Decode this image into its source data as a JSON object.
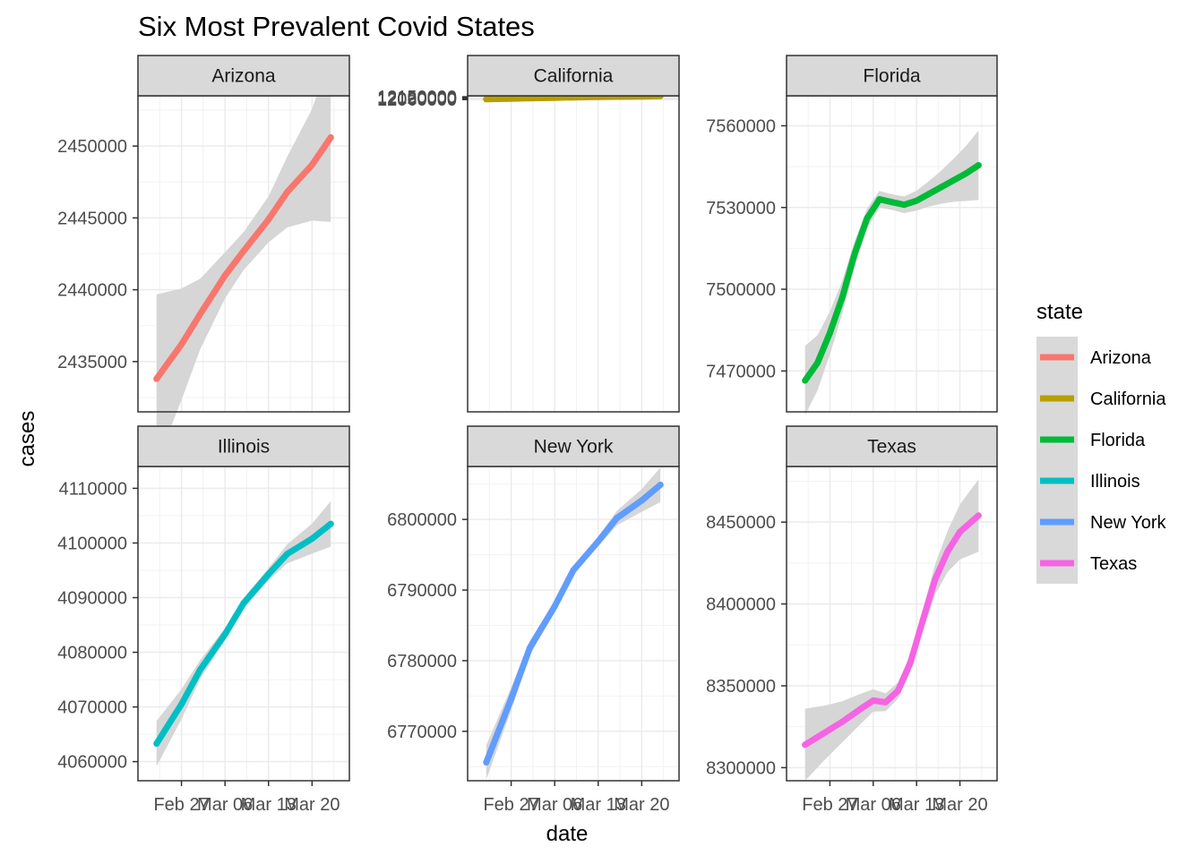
{
  "chart_data": {
    "type": "line",
    "title": "Six Most Prevalent Covid States",
    "xlabel": "date",
    "ylabel": "cases",
    "x_ticks": [
      "Feb 27",
      "Mar 06",
      "Mar 13",
      "Mar 20"
    ],
    "legend": {
      "title": "state",
      "position": "right"
    },
    "grid": true,
    "smoothing_band": true,
    "panels": [
      {
        "name": "Arizona",
        "color": "#F8766D",
        "ylim": [
          2431500,
          2453500
        ],
        "y_ticks": [
          2435000,
          2440000,
          2445000,
          2450000
        ],
        "tick_labels": [
          "2435000",
          "2440000",
          "2445000",
          "2450000"
        ],
        "x": [
          "2022-02-23",
          "2022-02-27",
          "2022-03-02",
          "2022-03-06",
          "2022-03-09",
          "2022-03-13",
          "2022-03-16",
          "2022-03-20",
          "2022-03-23"
        ],
        "values": [
          2433800,
          2436200,
          2438300,
          2441000,
          2442700,
          2444900,
          2446800,
          2448700,
          2450600
        ]
      },
      {
        "name": "California",
        "color": "#B79F00",
        "ylim": [
          2059000,
          12181000
        ],
        "y_ticks": [
          12060000,
          12090000,
          12120000,
          12150000
        ],
        "tick_labels": [
          "12060000",
          "12090000",
          "12120000",
          "12150000"
        ],
        "x": [
          "2022-02-23",
          "2022-02-27",
          "2022-03-02",
          "2022-03-06",
          "2022-03-09",
          "2022-03-13",
          "2022-03-16",
          "2022-03-20",
          "2022-03-23"
        ],
        "values": [
          12073000,
          12089000,
          12104000,
          12118000,
          12131000,
          12143000,
          12153000,
          12162000,
          12171000
        ]
      },
      {
        "name": "Florida",
        "color": "#00BA38",
        "ylim": [
          7455000,
          7571000
        ],
        "y_ticks": [
          7470000,
          7500000,
          7530000,
          7560000
        ],
        "tick_labels": [
          "7470000",
          "7500000",
          "7530000",
          "7560000"
        ],
        "x": [
          "2022-02-23",
          "2022-02-25",
          "2022-02-27",
          "2022-03-01",
          "2022-03-03",
          "2022-03-05",
          "2022-03-07",
          "2022-03-09",
          "2022-03-11",
          "2022-03-13",
          "2022-03-15",
          "2022-03-17",
          "2022-03-19",
          "2022-03-21",
          "2022-03-23"
        ],
        "values": [
          7466500,
          7473000,
          7484000,
          7497000,
          7513000,
          7526000,
          7533000,
          7532000,
          7531000,
          7532500,
          7535000,
          7537500,
          7540000,
          7542500,
          7545500
        ]
      },
      {
        "name": "Illinois",
        "color": "#00BFC4",
        "ylim": [
          4056500,
          4114000
        ],
        "y_ticks": [
          4060000,
          4070000,
          4080000,
          4090000,
          4100000,
          4110000
        ],
        "tick_labels": [
          "4060000",
          "4070000",
          "4080000",
          "4090000",
          "4100000",
          "4110000"
        ],
        "x": [
          "2022-02-23",
          "2022-02-27",
          "2022-03-02",
          "2022-03-06",
          "2022-03-09",
          "2022-03-13",
          "2022-03-16",
          "2022-03-20",
          "2022-03-23"
        ],
        "values": [
          4063300,
          4070500,
          4076800,
          4083300,
          4089000,
          4094300,
          4098000,
          4100800,
          4103500
        ]
      },
      {
        "name": "New York",
        "color": "#619CFF",
        "ylim": [
          6763000,
          6807500
        ],
        "y_ticks": [
          6770000,
          6780000,
          6790000,
          6800000
        ],
        "tick_labels": [
          "6770000",
          "6780000",
          "6790000",
          "6800000"
        ],
        "x": [
          "2022-02-23",
          "2022-02-27",
          "2022-03-02",
          "2022-03-06",
          "2022-03-09",
          "2022-03-13",
          "2022-03-16",
          "2022-03-20",
          "2022-03-23"
        ],
        "values": [
          6765600,
          6774600,
          6781800,
          6787700,
          6792800,
          6796900,
          6800200,
          6802700,
          6804900
        ]
      },
      {
        "name": "Texas",
        "color": "#F564E3",
        "ylim": [
          8292000,
          8484000
        ],
        "y_ticks": [
          8300000,
          8350000,
          8400000,
          8450000
        ],
        "tick_labels": [
          "8300000",
          "8350000",
          "8400000",
          "8450000"
        ],
        "x": [
          "2022-02-23",
          "2022-02-26",
          "2022-03-01",
          "2022-03-04",
          "2022-03-06",
          "2022-03-08",
          "2022-03-10",
          "2022-03-12",
          "2022-03-14",
          "2022-03-16",
          "2022-03-18",
          "2022-03-20",
          "2022-03-23"
        ],
        "values": [
          8314000,
          8321000,
          8328000,
          8336000,
          8341000,
          8340000,
          8347000,
          8364000,
          8390000,
          8415000,
          8432000,
          8444000,
          8454000
        ]
      }
    ]
  }
}
